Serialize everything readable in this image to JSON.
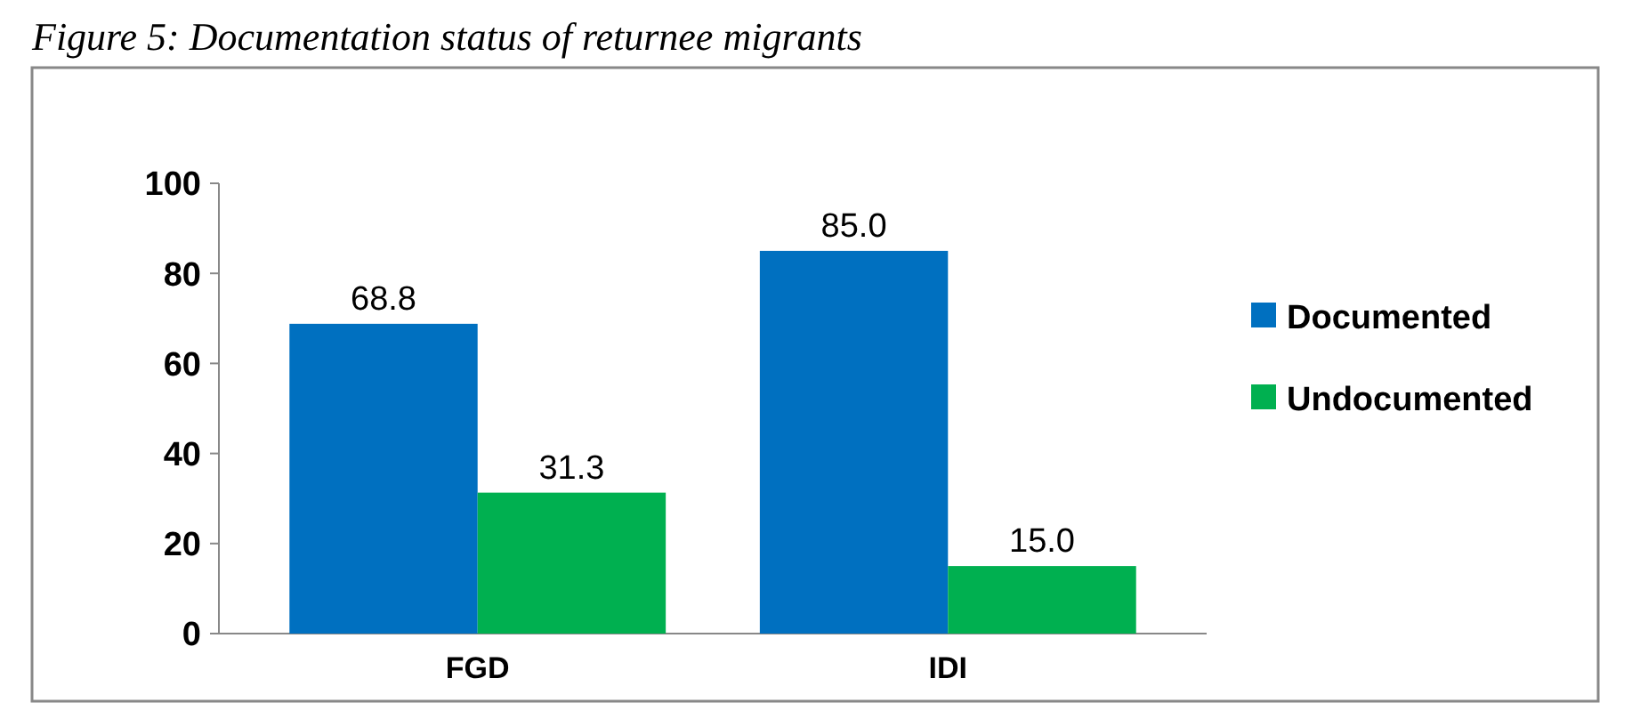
{
  "chart_data": {
    "type": "bar",
    "title": "Figure 5: Documentation status of returnee migrants",
    "categories": [
      "FGD",
      "IDI"
    ],
    "series": [
      {
        "name": "Documented",
        "color": "#0070c0",
        "values": [
          68.8,
          85.0
        ],
        "value_labels": [
          "68.8",
          "85.0"
        ]
      },
      {
        "name": "Undocumented",
        "color": "#00b050",
        "values": [
          31.3,
          15.0
        ],
        "value_labels": [
          "31.3",
          "15.0"
        ]
      }
    ],
    "ylim": [
      0,
      100
    ],
    "yticks": [
      0,
      20,
      40,
      60,
      80,
      100
    ],
    "legend": "right"
  }
}
